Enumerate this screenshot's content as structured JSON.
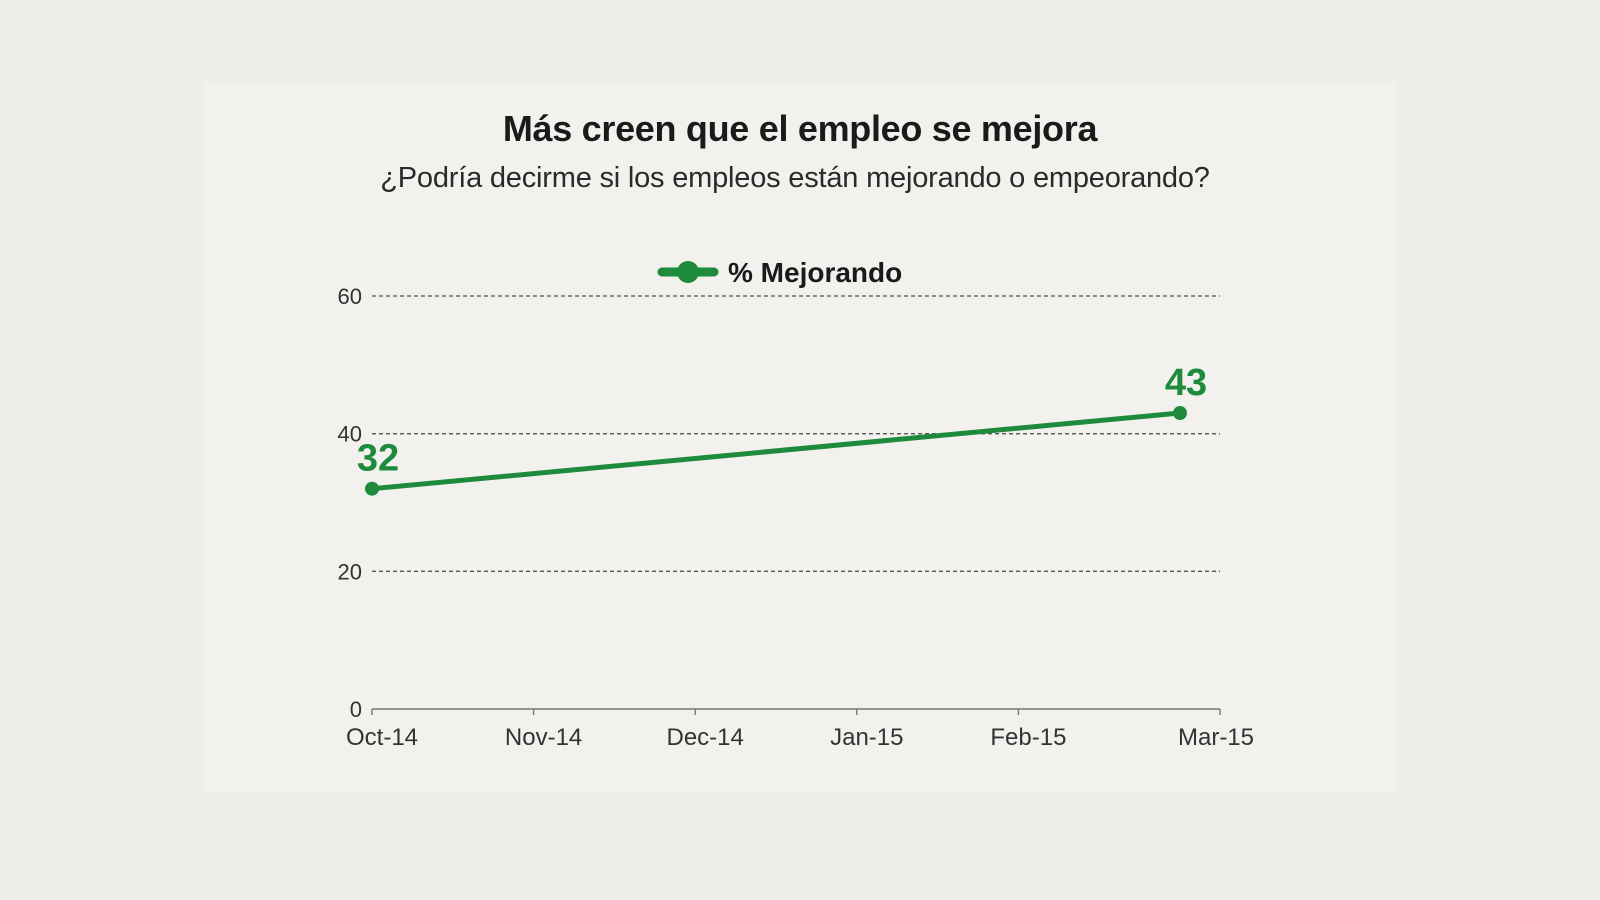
{
  "chart_data": {
    "type": "line",
    "title": "Más creen que el empleo se mejora",
    "subtitle": "¿Podría decirme si los empleos están mejorando o empeorando?",
    "categories": [
      "Oct-14",
      "Nov-14",
      "Dec-14",
      "Jan-15",
      "Feb-15",
      "Mar-15"
    ],
    "x": [
      "Oct-14",
      "Mar-15"
    ],
    "series": [
      {
        "name": "% Mejorando",
        "values": [
          32,
          43
        ],
        "color": "#1e8a3c"
      }
    ],
    "data_labels": [
      "32",
      "43"
    ],
    "yticks": [
      "0",
      "20",
      "40",
      "60"
    ],
    "ylim": [
      0,
      60
    ],
    "grid": "dashed horizontal",
    "legend": "top-center",
    "xlabel": "",
    "ylabel": ""
  }
}
